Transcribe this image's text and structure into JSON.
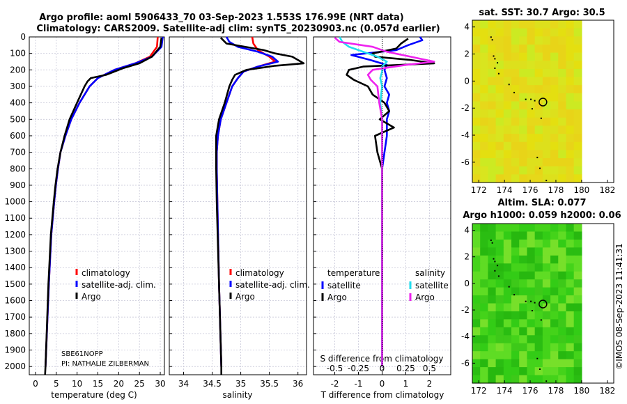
{
  "title": {
    "line1": "Argo profile: aoml 5906433_70 03-Sep-2023 1.553S 176.99E (NRT data)",
    "line2": "Climatology: CARS2009. Satellite-adj clim: synTS_20230903.nc (0.057d earlier)"
  },
  "colors": {
    "climatology": "#ff0000",
    "satellite": "#0000ff",
    "argo": "#000000",
    "sal_satellite": "#22ddee",
    "sal_argo": "#ee22ee"
  },
  "footer": {
    "timestamp": "©IMOS 08-Sep-2023 11:41:31"
  },
  "chart_data": [
    {
      "type": "line",
      "id": "temperature",
      "xlabel": "temperature (deg C)",
      "xlim": [
        -1.5,
        31
      ],
      "xticks": [
        0,
        5,
        10,
        15,
        20,
        25,
        30
      ],
      "ylim": [
        2050,
        0
      ],
      "yticks": [
        0,
        100,
        200,
        300,
        400,
        500,
        600,
        700,
        800,
        900,
        1000,
        1100,
        1200,
        1300,
        1400,
        1500,
        1600,
        1700,
        1800,
        1900,
        2000
      ],
      "legend": [
        "climatology",
        "satellite-adj. clim.",
        "Argo"
      ],
      "annotation": [
        "SBE61NOPP",
        "PI: NATHALIE ZILBERMAN"
      ],
      "series": [
        {
          "name": "climatology",
          "color_key": "climatology",
          "depth": [
            0,
            60,
            120,
            160,
            200,
            250,
            300,
            400,
            500,
            600,
            700,
            800,
            900,
            1000,
            1200,
            1500,
            2000
          ],
          "values": [
            29.4,
            29.2,
            27.5,
            24,
            19,
            15,
            13,
            10.6,
            8.6,
            7.2,
            6,
            5.4,
            4.9,
            4.5,
            3.8,
            3.2,
            2.4
          ]
        },
        {
          "name": "satellite-adj. clim.",
          "color_key": "satellite",
          "depth": [
            0,
            60,
            120,
            160,
            200,
            250,
            300,
            400,
            500,
            600,
            700,
            800,
            900,
            1000,
            1200,
            1500,
            2000
          ],
          "values": [
            30.6,
            30.3,
            28,
            24,
            19,
            15,
            13,
            10.6,
            8.6,
            7.2,
            6,
            5.4,
            4.9,
            4.5,
            3.8,
            3.2,
            2.4
          ]
        },
        {
          "name": "Argo",
          "color_key": "argo",
          "depth": [
            5,
            60,
            120,
            160,
            190,
            230,
            250,
            270,
            300,
            400,
            500,
            600,
            700,
            800,
            900,
            1000,
            1200,
            1500,
            2000,
            2050
          ],
          "values": [
            30.3,
            30,
            28,
            25,
            21,
            17,
            13.3,
            12.5,
            11.8,
            10,
            8.2,
            7,
            6,
            5.3,
            4.8,
            4.4,
            3.7,
            3.1,
            2.4,
            2.3
          ]
        }
      ]
    },
    {
      "type": "line",
      "id": "salinity",
      "xlabel": "salinity",
      "xlim": [
        33.75,
        36.15
      ],
      "xticks": [
        34,
        34.5,
        35,
        35.5,
        36
      ],
      "ylim": [
        2050,
        0
      ],
      "legend": [
        "climatology",
        "satellite-adj. clim.",
        "Argo"
      ],
      "series": [
        {
          "name": "climatology",
          "color_key": "climatology",
          "depth": [
            0,
            40,
            80,
            120,
            150,
            180,
            210,
            250,
            300,
            400,
            500,
            600,
            700,
            800,
            1000,
            1500,
            2000
          ],
          "values": [
            35.2,
            35.22,
            35.3,
            35.5,
            35.6,
            35.3,
            35.05,
            34.95,
            34.85,
            34.75,
            34.65,
            34.6,
            34.58,
            34.58,
            34.59,
            34.62,
            34.66
          ]
        },
        {
          "name": "satellite-adj. clim.",
          "color_key": "satellite",
          "depth": [
            0,
            30,
            60,
            90,
            120,
            150,
            180,
            210,
            250,
            300,
            400,
            500,
            600,
            700,
            800,
            1000,
            1500,
            2000
          ],
          "values": [
            34.75,
            34.8,
            34.95,
            35.3,
            35.55,
            35.65,
            35.3,
            35.05,
            34.95,
            34.85,
            34.75,
            34.65,
            34.6,
            34.58,
            34.58,
            34.59,
            34.62,
            34.66
          ]
        },
        {
          "name": "Argo",
          "color_key": "argo",
          "depth": [
            5,
            40,
            80,
            100,
            120,
            140,
            160,
            175,
            200,
            230,
            260,
            300,
            400,
            500,
            600,
            700,
            800,
            1000,
            1500,
            2000,
            2050
          ],
          "values": [
            34.65,
            34.75,
            35.4,
            35.6,
            35.9,
            36.0,
            36.1,
            35.6,
            35.1,
            34.9,
            34.85,
            34.8,
            34.72,
            34.62,
            34.57,
            34.57,
            34.57,
            34.58,
            34.62,
            34.66,
            34.66
          ]
        }
      ]
    },
    {
      "type": "line",
      "id": "differences",
      "xlabel": "T difference from climatology",
      "xlabel_top": "S difference from climatology",
      "xlim": [
        -2.9,
        2.9
      ],
      "xticks": [
        -2,
        -1,
        0,
        1,
        2
      ],
      "s_ticks": [
        -0.5,
        -0.25,
        0,
        0.25,
        0.5
      ],
      "s_scale": 4,
      "legend_titles": [
        "temperature",
        "salinity"
      ],
      "legend": [
        "satellite",
        "Argo",
        "satellite",
        "Argo"
      ],
      "series": [
        {
          "name": "temperature satellite",
          "color_key": "satellite",
          "depth": [
            0,
            20,
            50,
            80,
            110,
            140,
            170,
            200,
            250,
            300,
            350,
            400,
            450,
            500,
            600,
            700,
            800,
            1000,
            1200,
            1500,
            2000
          ],
          "values": [
            1.6,
            1.7,
            1.1,
            0.6,
            -1.3,
            -0.5,
            0.2,
            0.1,
            0.2,
            0.1,
            0.3,
            0.2,
            0.3,
            0.2,
            0.2,
            0.1,
            0.0,
            0.0,
            0.0,
            0.0,
            0.0
          ]
        },
        {
          "name": "temperature Argo",
          "color_key": "argo",
          "depth": [
            10,
            40,
            70,
            100,
            120,
            140,
            160,
            180,
            200,
            230,
            260,
            300,
            350,
            400,
            450,
            500,
            550,
            600,
            700,
            800,
            1000,
            1500,
            2000
          ],
          "values": [
            1.1,
            0.8,
            0.6,
            -0.4,
            -0.3,
            1.2,
            2.2,
            -0.8,
            -1.4,
            -1.5,
            -1.2,
            -0.6,
            -0.4,
            0.1,
            0.3,
            -0.1,
            0.5,
            -0.3,
            -0.2,
            0.0,
            0.0,
            0.0,
            0.0
          ]
        },
        {
          "name": "salinity satellite",
          "color_key": "sal_satellite",
          "depth": [
            0,
            30,
            60,
            90,
            120,
            150,
            180,
            210,
            250,
            300,
            400,
            500,
            700,
            1000,
            1500,
            2000
          ],
          "values": [
            -0.45,
            -0.42,
            -0.35,
            -0.2,
            -0.05,
            0.05,
            0.0,
            0.0,
            -0.02,
            0.0,
            -0.02,
            0.0,
            0.0,
            0.0,
            0.0,
            0.0
          ]
        },
        {
          "name": "salinity Argo",
          "color_key": "sal_argo",
          "depth": [
            5,
            30,
            60,
            90,
            120,
            150,
            170,
            200,
            230,
            260,
            300,
            400,
            500,
            600,
            700,
            800,
            1000,
            1500,
            2000
          ],
          "values": [
            -0.5,
            -0.45,
            -0.1,
            0.05,
            0.3,
            0.55,
            0.25,
            -0.1,
            -0.15,
            -0.12,
            -0.05,
            -0.03,
            0.0,
            0.0,
            0.0,
            0.0,
            0.0,
            0.0,
            0.0
          ]
        }
      ]
    },
    {
      "type": "heatmap",
      "id": "sst-map",
      "title": "sat. SST: 30.7 Argo: 30.5",
      "xlim": [
        171.5,
        182.5
      ],
      "ylim": [
        -7.5,
        4.5
      ],
      "xticks": [
        172,
        174,
        176,
        178,
        180,
        182
      ],
      "yticks": [
        4,
        2,
        0,
        -2,
        -4,
        -6
      ],
      "data_extent_lon": [
        171.5,
        180
      ],
      "float_position": {
        "lon": 176.99,
        "lat": -1.553
      }
    },
    {
      "type": "heatmap",
      "id": "sla-map",
      "title_line1": "Altim. SLA: 0.077",
      "title_line2": "Argo h1000: 0.059 h2000: 0.06",
      "xlim": [
        171.5,
        182.5
      ],
      "ylim": [
        -7.5,
        4.5
      ],
      "xticks": [
        172,
        174,
        176,
        178,
        180,
        182
      ],
      "yticks": [
        4,
        2,
        0,
        -2,
        -4,
        -6
      ],
      "data_extent_lon": [
        171.5,
        180
      ],
      "float_position": {
        "lon": 176.99,
        "lat": -1.553
      }
    }
  ]
}
